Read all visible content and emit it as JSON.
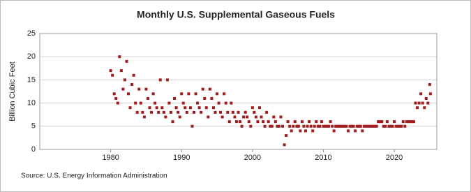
{
  "chart_data": {
    "type": "scatter",
    "title": "Monthly U.S. Supplemental Gaseous Fuels",
    "y_label": "Billion Cubic Feet",
    "source": "Source: U.S. Energy Information Administration",
    "xlim": [
      1970,
      2026
    ],
    "xticks": [
      1980,
      1990,
      2000,
      2010,
      2020
    ],
    "ylim": [
      0,
      25
    ],
    "yticks": [
      0,
      5,
      10,
      15,
      20,
      25
    ],
    "grid": true,
    "color": "#a01c1c",
    "x": [
      1980,
      1980.25,
      1980.5,
      1980.75,
      1981,
      1981.25,
      1981.5,
      1981.75,
      1982,
      1982.25,
      1982.5,
      1982.75,
      1983,
      1983.25,
      1983.5,
      1983.75,
      1984,
      1984.25,
      1984.5,
      1984.75,
      1985,
      1985.25,
      1985.5,
      1985.75,
      1986,
      1986.25,
      1986.5,
      1986.75,
      1987,
      1987.25,
      1987.5,
      1987.75,
      1988,
      1988.25,
      1988.5,
      1988.75,
      1989,
      1989.25,
      1989.5,
      1989.75,
      1990,
      1990.25,
      1990.5,
      1990.75,
      1991,
      1991.25,
      1991.5,
      1991.75,
      1992,
      1992.25,
      1992.5,
      1992.75,
      1993,
      1993.25,
      1993.5,
      1993.75,
      1994,
      1994.25,
      1994.5,
      1994.75,
      1995,
      1995.25,
      1995.5,
      1995.75,
      1996,
      1996.25,
      1996.5,
      1996.75,
      1997,
      1997.25,
      1997.5,
      1997.75,
      1998,
      1998.25,
      1998.5,
      1998.75,
      1999,
      1999.25,
      1999.5,
      1999.75,
      2000,
      2000.25,
      2000.5,
      2000.75,
      2001,
      2001.25,
      2001.5,
      2001.75,
      2002,
      2002.25,
      2002.5,
      2002.75,
      2003,
      2003.25,
      2003.5,
      2003.75,
      2004,
      2004.25,
      2004.5,
      2004.75,
      2005,
      2005.25,
      2005.5,
      2005.75,
      2006,
      2006.25,
      2006.5,
      2006.75,
      2007,
      2007.25,
      2007.5,
      2007.75,
      2008,
      2008.25,
      2008.5,
      2008.75,
      2009,
      2009.25,
      2009.5,
      2009.75,
      2010,
      2010.25,
      2010.5,
      2010.75,
      2011,
      2011.25,
      2011.5,
      2011.75,
      2012,
      2012.25,
      2012.5,
      2012.75,
      2013,
      2013.25,
      2013.5,
      2013.75,
      2014,
      2014.25,
      2014.5,
      2014.75,
      2015,
      2015.25,
      2015.5,
      2015.75,
      2016,
      2016.25,
      2016.5,
      2016.75,
      2017,
      2017.25,
      2017.5,
      2017.75,
      2018,
      2018.25,
      2018.5,
      2018.75,
      2019,
      2019.25,
      2019.5,
      2019.75,
      2020,
      2020.25,
      2020.5,
      2020.75,
      2021,
      2021.25,
      2021.5,
      2021.75,
      2022,
      2022.25,
      2022.5,
      2022.75,
      2023,
      2023.25,
      2023.5,
      2023.75,
      2024,
      2024.25,
      2024.5,
      2024.75,
      2025,
      2025.1
    ],
    "values": [
      17,
      16,
      12,
      11,
      10,
      20,
      17,
      13,
      15,
      19,
      12,
      9,
      14,
      16,
      10,
      8,
      13,
      10,
      8,
      7,
      13,
      11,
      9,
      8,
      12,
      10,
      9,
      8,
      15,
      9,
      8,
      7,
      15,
      10,
      8,
      6,
      11,
      9,
      8,
      7,
      12,
      10,
      9,
      8,
      12,
      9,
      5,
      8,
      12,
      10,
      9,
      8,
      13,
      11,
      9,
      7,
      13,
      11,
      9,
      8,
      12,
      10,
      8,
      7,
      12,
      10,
      8,
      6,
      10,
      8,
      7,
      6,
      8,
      6,
      5,
      7,
      8,
      7,
      6,
      5,
      9,
      8,
      7,
      6,
      9,
      7,
      6,
      5,
      8,
      6,
      5,
      5,
      7,
      6,
      5,
      5,
      7,
      5,
      1,
      3,
      6,
      5,
      4,
      5,
      6,
      5,
      5,
      4,
      6,
      5,
      4,
      5,
      6,
      5,
      4,
      5,
      6,
      5,
      5,
      6,
      5,
      5,
      5,
      5,
      6,
      5,
      4,
      5,
      5,
      5,
      5,
      5,
      5,
      5,
      4,
      5,
      5,
      5,
      4,
      5,
      5,
      5,
      4,
      5,
      5,
      5,
      5,
      5,
      5,
      5,
      5,
      6,
      6,
      6,
      5,
      5,
      6,
      5,
      5,
      5,
      6,
      5,
      5,
      5,
      5,
      6,
      5,
      6,
      6,
      6,
      6,
      6,
      10,
      9,
      10,
      12,
      10,
      9,
      11,
      10,
      14,
      12
    ]
  }
}
